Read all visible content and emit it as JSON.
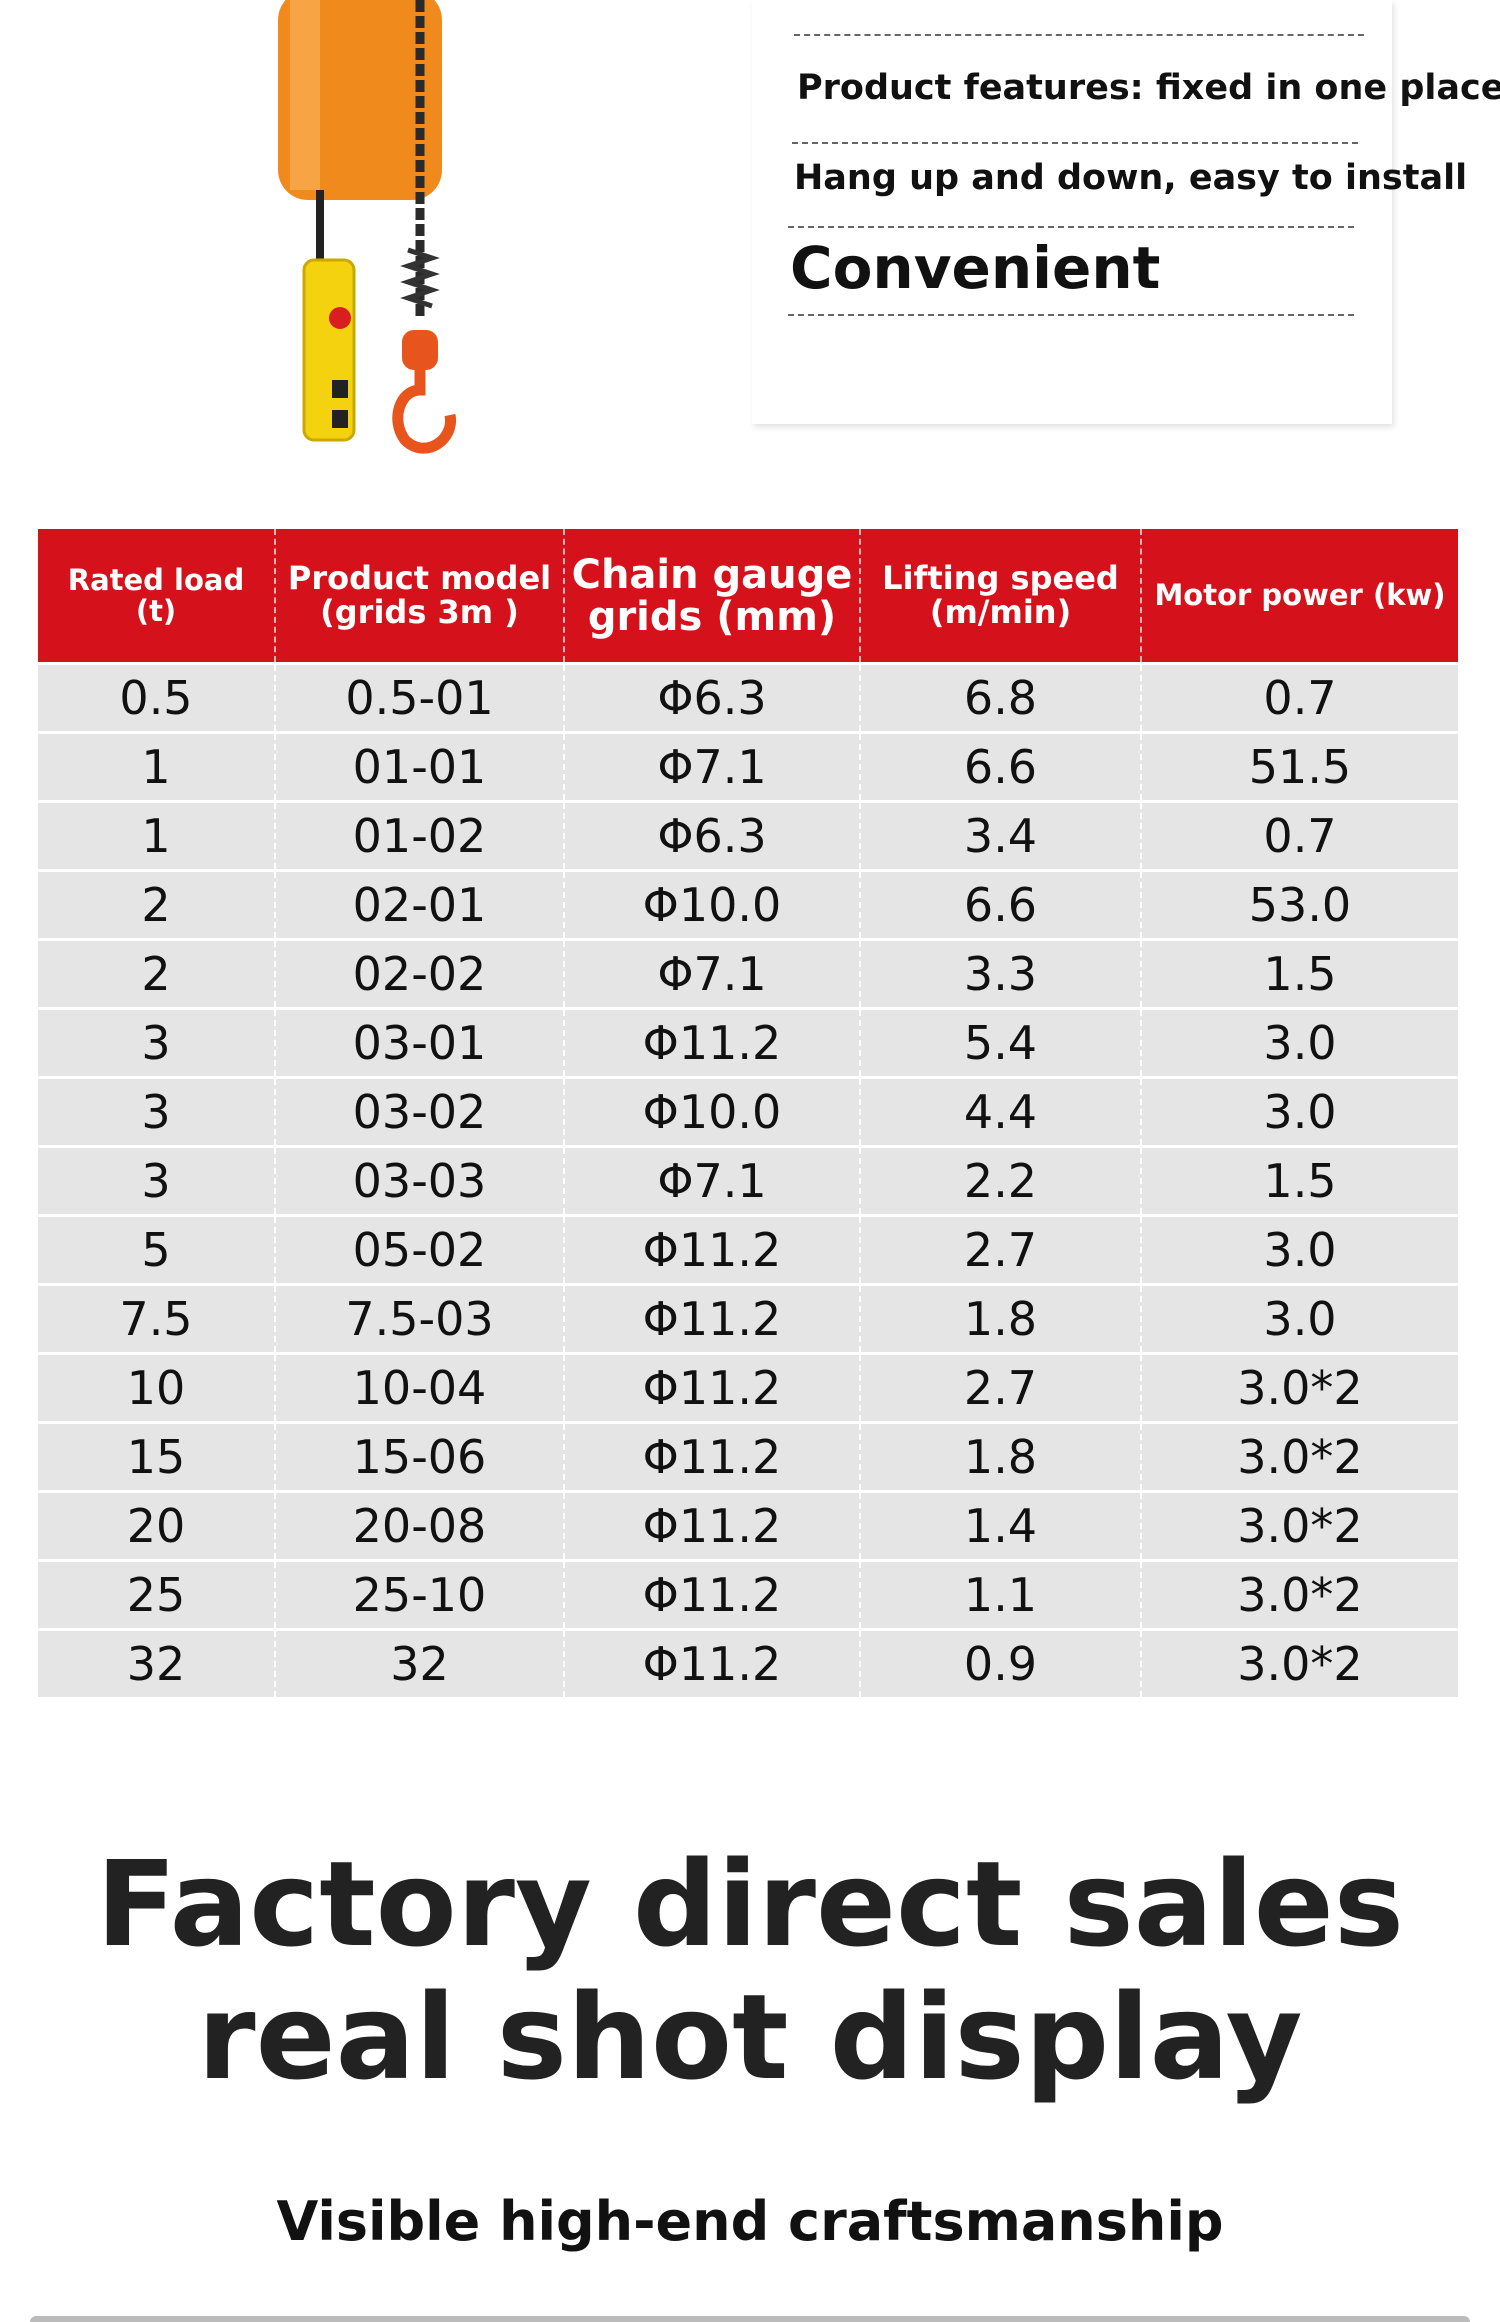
{
  "features": {
    "line1": "Product features: fixed in one place",
    "line2": "Hang up and down, easy to install",
    "line3": "Convenient"
  },
  "table": {
    "headers": [
      "Rated load (t)",
      "Product model (grids 3m )",
      "Chain gauge grids (mm)",
      "Lifting speed (m/min)",
      "Motor power (kw)"
    ],
    "rows": [
      [
        "0.5",
        "0.5-01",
        "Φ6.3",
        "6.8",
        "0.7"
      ],
      [
        "1",
        "01-01",
        "Φ7.1",
        "6.6",
        "51.5"
      ],
      [
        "1",
        "01-02",
        "Φ6.3",
        "3.4",
        "0.7"
      ],
      [
        "2",
        "02-01",
        "Φ10.0",
        "6.6",
        "53.0"
      ],
      [
        "2",
        "02-02",
        "Φ7.1",
        "3.3",
        "1.5"
      ],
      [
        "3",
        "03-01",
        "Φ11.2",
        "5.4",
        "3.0"
      ],
      [
        "3",
        "03-02",
        "Φ10.0",
        "4.4",
        "3.0"
      ],
      [
        "3",
        "03-03",
        "Φ7.1",
        "2.2",
        "1.5"
      ],
      [
        "5",
        "05-02",
        "Φ11.2",
        "2.7",
        "3.0"
      ],
      [
        "7.5",
        "7.5-03",
        "Φ11.2",
        "1.8",
        "3.0"
      ],
      [
        "10",
        "10-04",
        "Φ11.2",
        "2.7",
        "3.0*2"
      ],
      [
        "15",
        "15-06",
        "Φ11.2",
        "1.8",
        "3.0*2"
      ],
      [
        "20",
        "20-08",
        "Φ11.2",
        "1.4",
        "3.0*2"
      ],
      [
        "25",
        "25-10",
        "Φ11.2",
        "1.1",
        "3.0*2"
      ],
      [
        "32",
        "32",
        "Φ11.2",
        "0.9",
        "3.0*2"
      ]
    ]
  },
  "heading": {
    "line1": "Factory direct sales",
    "line2": "real shot display"
  },
  "subtitle": "Visible high-end craftsmanship"
}
